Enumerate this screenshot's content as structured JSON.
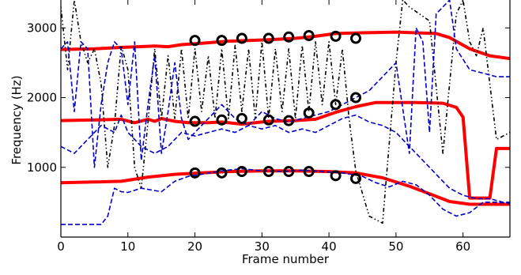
{
  "chart_data": {
    "type": "line",
    "xlabel": "Frame number",
    "ylabel": "Frequency (Hz)",
    "xlim": [
      0,
      67
    ],
    "ylim": [
      0,
      3400
    ],
    "xticks": [
      0,
      10,
      20,
      30,
      40,
      50,
      60
    ],
    "yticks": [
      1000,
      2000,
      3000
    ],
    "grid": false,
    "legend": "none",
    "series": [
      {
        "style": "solid",
        "color": "#ff0000",
        "points": [
          [
            0,
            2690
          ],
          [
            5,
            2700
          ],
          [
            9,
            2720
          ],
          [
            14,
            2740
          ],
          [
            16,
            2730
          ],
          [
            18,
            2760
          ],
          [
            21,
            2780
          ],
          [
            25,
            2810
          ],
          [
            28,
            2820
          ],
          [
            31,
            2830
          ],
          [
            35,
            2850
          ],
          [
            38,
            2880
          ],
          [
            41,
            2920
          ],
          [
            45,
            2930
          ],
          [
            50,
            2940
          ],
          [
            53,
            2930
          ],
          [
            56,
            2920
          ],
          [
            58,
            2860
          ],
          [
            61,
            2700
          ],
          [
            64,
            2600
          ],
          [
            67,
            2560
          ]
        ]
      },
      {
        "style": "solid",
        "color": "#ff0000",
        "points": [
          [
            0,
            1670
          ],
          [
            5,
            1680
          ],
          [
            9,
            1690
          ],
          [
            11,
            1640
          ],
          [
            13,
            1690
          ],
          [
            14,
            1660
          ],
          [
            15,
            1700
          ],
          [
            17,
            1660
          ],
          [
            19,
            1640
          ],
          [
            22,
            1640
          ],
          [
            24,
            1650
          ],
          [
            27,
            1620
          ],
          [
            29,
            1640
          ],
          [
            31,
            1660
          ],
          [
            35,
            1670
          ],
          [
            38,
            1690
          ],
          [
            41,
            1790
          ],
          [
            44,
            1870
          ],
          [
            47,
            1930
          ],
          [
            53,
            1930
          ],
          [
            57,
            1920
          ],
          [
            59,
            1860
          ],
          [
            60,
            1720
          ],
          [
            61,
            560
          ],
          [
            63,
            560
          ],
          [
            64,
            560
          ],
          [
            65,
            1270
          ],
          [
            67,
            1270
          ]
        ]
      },
      {
        "style": "solid",
        "color": "#ff0000",
        "points": [
          [
            0,
            780
          ],
          [
            5,
            790
          ],
          [
            9,
            800
          ],
          [
            13,
            860
          ],
          [
            17,
            900
          ],
          [
            21,
            920
          ],
          [
            25,
            940
          ],
          [
            30,
            950
          ],
          [
            35,
            950
          ],
          [
            40,
            940
          ],
          [
            44,
            920
          ],
          [
            48,
            850
          ],
          [
            52,
            730
          ],
          [
            55,
            620
          ],
          [
            58,
            510
          ],
          [
            61,
            470
          ],
          [
            64,
            470
          ],
          [
            67,
            470
          ]
        ]
      },
      {
        "style": "dashdot",
        "color": "#000000",
        "points": [
          [
            0,
            3300
          ],
          [
            1,
            2400
          ],
          [
            2,
            3400
          ],
          [
            3,
            2800
          ],
          [
            4,
            2500
          ],
          [
            5,
            2700
          ],
          [
            6,
            2200
          ],
          [
            7,
            1000
          ],
          [
            8,
            1600
          ],
          [
            9,
            2750
          ],
          [
            10,
            2400
          ],
          [
            11,
            1000
          ],
          [
            12,
            700
          ],
          [
            13,
            1650
          ],
          [
            14,
            2700
          ],
          [
            15,
            1700
          ],
          [
            16,
            2600
          ],
          [
            17,
            1700
          ],
          [
            18,
            2700
          ],
          [
            19,
            1700
          ],
          [
            20,
            2700
          ],
          [
            21,
            1800
          ],
          [
            22,
            2600
          ],
          [
            23,
            1700
          ],
          [
            24,
            2700
          ],
          [
            25,
            1700
          ],
          [
            26,
            2750
          ],
          [
            27,
            1800
          ],
          [
            28,
            2700
          ],
          [
            29,
            1700
          ],
          [
            30,
            2800
          ],
          [
            31,
            1700
          ],
          [
            32,
            2700
          ],
          [
            33,
            1800
          ],
          [
            34,
            2700
          ],
          [
            35,
            1700
          ],
          [
            36,
            2750
          ],
          [
            37,
            1800
          ],
          [
            38,
            2800
          ],
          [
            39,
            1900
          ],
          [
            40,
            2800
          ],
          [
            41,
            1900
          ],
          [
            42,
            2700
          ],
          [
            43,
            1700
          ],
          [
            44,
            950
          ],
          [
            46,
            300
          ],
          [
            48,
            200
          ],
          [
            50,
            2500
          ],
          [
            51,
            3400
          ],
          [
            52,
            3300
          ],
          [
            55,
            3100
          ],
          [
            57,
            1200
          ],
          [
            59,
            3200
          ],
          [
            60,
            3400
          ],
          [
            61,
            2800
          ],
          [
            62,
            2600
          ],
          [
            63,
            3000
          ],
          [
            65,
            1400
          ],
          [
            67,
            1500
          ]
        ]
      },
      {
        "style": "dashed",
        "color": "#0000cc",
        "points": [
          [
            0,
            2700
          ],
          [
            1,
            2800
          ],
          [
            2,
            1800
          ],
          [
            3,
            2800
          ],
          [
            4,
            2700
          ],
          [
            5,
            1000
          ],
          [
            6,
            1900
          ],
          [
            7,
            2500
          ],
          [
            8,
            2800
          ],
          [
            9,
            2700
          ],
          [
            10,
            1900
          ],
          [
            11,
            2800
          ],
          [
            12,
            1100
          ],
          [
            13,
            1900
          ],
          [
            14,
            2600
          ],
          [
            15,
            1200
          ],
          [
            16,
            1800
          ],
          [
            17,
            2500
          ],
          [
            18,
            1700
          ],
          [
            19,
            1400
          ],
          [
            20,
            1500
          ],
          [
            21,
            1600
          ],
          [
            22,
            1700
          ],
          [
            24,
            1900
          ],
          [
            26,
            1700
          ],
          [
            28,
            1600
          ],
          [
            30,
            1800
          ],
          [
            32,
            1700
          ],
          [
            34,
            1650
          ],
          [
            36,
            1700
          ],
          [
            38,
            1750
          ],
          [
            40,
            1800
          ],
          [
            42,
            1900
          ],
          [
            44,
            2000
          ],
          [
            46,
            2100
          ],
          [
            48,
            2300
          ],
          [
            50,
            2500
          ],
          [
            52,
            1200
          ],
          [
            53,
            3000
          ],
          [
            54,
            2800
          ],
          [
            55,
            1500
          ],
          [
            56,
            3200
          ],
          [
            57,
            3300
          ],
          [
            58,
            3400
          ],
          [
            59,
            2700
          ],
          [
            61,
            2400
          ],
          [
            63,
            2350
          ],
          [
            65,
            2300
          ],
          [
            67,
            2300
          ]
        ]
      },
      {
        "style": "dashed",
        "color": "#0000cc",
        "points": [
          [
            0,
            1300
          ],
          [
            2,
            1200
          ],
          [
            4,
            1400
          ],
          [
            6,
            1600
          ],
          [
            8,
            1500
          ],
          [
            9,
            1750
          ],
          [
            10,
            1500
          ],
          [
            12,
            1300
          ],
          [
            14,
            1200
          ],
          [
            16,
            1300
          ],
          [
            18,
            1500
          ],
          [
            20,
            1450
          ],
          [
            22,
            1500
          ],
          [
            24,
            1550
          ],
          [
            26,
            1500
          ],
          [
            28,
            1600
          ],
          [
            30,
            1550
          ],
          [
            32,
            1600
          ],
          [
            34,
            1500
          ],
          [
            36,
            1550
          ],
          [
            38,
            1500
          ],
          [
            40,
            1600
          ],
          [
            42,
            1700
          ],
          [
            44,
            1750
          ],
          [
            46,
            1650
          ],
          [
            48,
            1600
          ],
          [
            50,
            1500
          ],
          [
            52,
            1300
          ],
          [
            54,
            1100
          ],
          [
            56,
            900
          ],
          [
            58,
            700
          ],
          [
            60,
            600
          ],
          [
            62,
            550
          ],
          [
            64,
            550
          ],
          [
            66,
            500
          ],
          [
            67,
            500
          ]
        ]
      },
      {
        "style": "dashed",
        "color": "#0000cc",
        "points": [
          [
            0,
            180
          ],
          [
            3,
            180
          ],
          [
            6,
            180
          ],
          [
            7,
            300
          ],
          [
            8,
            700
          ],
          [
            9,
            650
          ],
          [
            10,
            640
          ],
          [
            12,
            700
          ],
          [
            15,
            650
          ],
          [
            17,
            800
          ],
          [
            19,
            870
          ],
          [
            21,
            900
          ],
          [
            24,
            950
          ],
          [
            27,
            980
          ],
          [
            30,
            950
          ],
          [
            33,
            940
          ],
          [
            36,
            960
          ],
          [
            39,
            940
          ],
          [
            42,
            920
          ],
          [
            45,
            870
          ],
          [
            47,
            780
          ],
          [
            49,
            720
          ],
          [
            51,
            800
          ],
          [
            53,
            750
          ],
          [
            55,
            600
          ],
          [
            57,
            400
          ],
          [
            59,
            300
          ],
          [
            61,
            350
          ],
          [
            63,
            500
          ],
          [
            65,
            500
          ],
          [
            67,
            480
          ]
        ]
      },
      {
        "style": "markers",
        "color": "#000000",
        "points": [
          [
            20,
            2820
          ],
          [
            24,
            2820
          ],
          [
            27,
            2850
          ],
          [
            31,
            2850
          ],
          [
            34,
            2870
          ],
          [
            37,
            2890
          ],
          [
            41,
            2880
          ],
          [
            44,
            2850
          ],
          [
            20,
            1660
          ],
          [
            24,
            1680
          ],
          [
            27,
            1700
          ],
          [
            31,
            1680
          ],
          [
            34,
            1670
          ],
          [
            37,
            1780
          ],
          [
            41,
            1900
          ],
          [
            44,
            2000
          ],
          [
            20,
            920
          ],
          [
            24,
            920
          ],
          [
            27,
            940
          ],
          [
            31,
            940
          ],
          [
            34,
            940
          ],
          [
            37,
            940
          ],
          [
            41,
            880
          ],
          [
            44,
            840
          ]
        ]
      }
    ]
  }
}
